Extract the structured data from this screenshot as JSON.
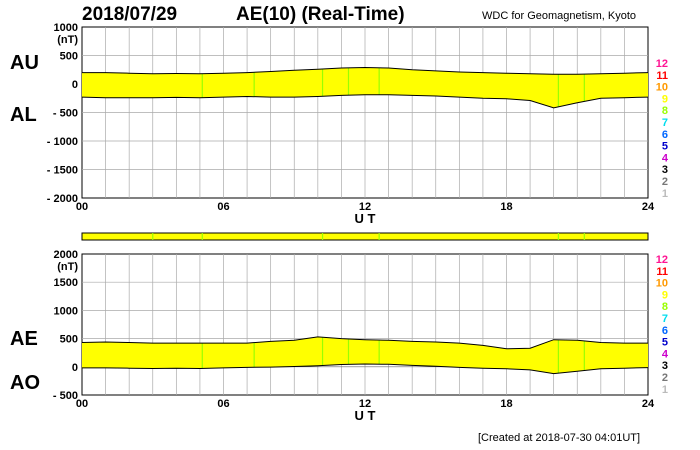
{
  "header": {
    "date": "2018/07/29",
    "title": "AE(10) (Real-Time)",
    "source": "WDC for Geomagnetism, Kyoto"
  },
  "footer": "[Created at 2018-07-30 04:01UT]",
  "side_labels": {
    "au": "AU",
    "al": "AL",
    "ae": "AE",
    "ao": "AO"
  },
  "unit_label": "(nT)",
  "legend": [
    {
      "label": "12",
      "color": "#ff1493"
    },
    {
      "label": "11",
      "color": "#ff0000"
    },
    {
      "label": "10",
      "color": "#ff9900"
    },
    {
      "label": "9",
      "color": "#ffff00"
    },
    {
      "label": "8",
      "color": "#99ff00"
    },
    {
      "label": "7",
      "color": "#00ddee"
    },
    {
      "label": "6",
      "color": "#0066ff"
    },
    {
      "label": "5",
      "color": "#0000cc"
    },
    {
      "label": "4",
      "color": "#cc00cc"
    },
    {
      "label": "3",
      "color": "#000000"
    },
    {
      "label": "2",
      "color": "#777777"
    },
    {
      "label": "1",
      "color": "#bbbbbb"
    }
  ],
  "colors": {
    "fill": "#ffff00",
    "station_lines": "#99ff00",
    "grid": "#aaaaaa",
    "zero_line": "#666666"
  },
  "chart_data": [
    {
      "type": "area",
      "panel": "AU/AL",
      "title": "",
      "xlabel": "U T",
      "ylabel": "(nT)",
      "xlim": [
        0,
        24
      ],
      "ylim": [
        -2000,
        1000
      ],
      "xticks": [
        "00",
        "06",
        "12",
        "18",
        "24"
      ],
      "yticks": [
        "1000",
        "500",
        "0",
        "- 500",
        "- 1000",
        "- 1500",
        "- 2000"
      ],
      "x": [
        0,
        1,
        2,
        3,
        4,
        5,
        6,
        7,
        8,
        9,
        10,
        11,
        12,
        13,
        14,
        15,
        16,
        17,
        18,
        19,
        20,
        21,
        22,
        23,
        24
      ],
      "series": [
        {
          "name": "AU",
          "values": [
            200,
            200,
            190,
            180,
            185,
            180,
            190,
            200,
            220,
            240,
            260,
            280,
            290,
            280,
            250,
            230,
            210,
            200,
            190,
            180,
            170,
            170,
            180,
            190,
            200
          ]
        },
        {
          "name": "AL",
          "values": [
            -230,
            -240,
            -240,
            -240,
            -235,
            -240,
            -230,
            -220,
            -230,
            -230,
            -220,
            -200,
            -190,
            -190,
            -200,
            -210,
            -230,
            -250,
            -260,
            -290,
            -420,
            -330,
            -250,
            -240,
            -230
          ]
        }
      ],
      "grid": true
    },
    {
      "type": "bar",
      "panel": "station-strip",
      "title": "",
      "xlim": [
        0,
        24
      ],
      "values": [
        1
      ]
    },
    {
      "type": "area",
      "panel": "AE/AO",
      "title": "",
      "xlabel": "U T",
      "ylabel": "(nT)",
      "xlim": [
        0,
        24
      ],
      "ylim": [
        -500,
        2000
      ],
      "xticks": [
        "00",
        "06",
        "12",
        "18",
        "24"
      ],
      "yticks": [
        "2000",
        "1500",
        "1000",
        "500",
        "0",
        "- 500"
      ],
      "x": [
        0,
        1,
        2,
        3,
        4,
        5,
        6,
        7,
        8,
        9,
        10,
        11,
        12,
        13,
        14,
        15,
        16,
        17,
        18,
        19,
        20,
        21,
        22,
        23,
        24
      ],
      "series": [
        {
          "name": "AE",
          "values": [
            430,
            440,
            430,
            420,
            420,
            420,
            420,
            420,
            450,
            470,
            530,
            500,
            480,
            470,
            450,
            440,
            420,
            380,
            320,
            330,
            480,
            470,
            430,
            420,
            420
          ]
        },
        {
          "name": "AO",
          "values": [
            -20,
            -20,
            -25,
            -30,
            -25,
            -30,
            -20,
            -10,
            -5,
            5,
            20,
            40,
            50,
            45,
            25,
            10,
            -10,
            -25,
            -35,
            -55,
            -120,
            -80,
            -35,
            -25,
            -15
          ]
        }
      ],
      "grid": true
    }
  ]
}
